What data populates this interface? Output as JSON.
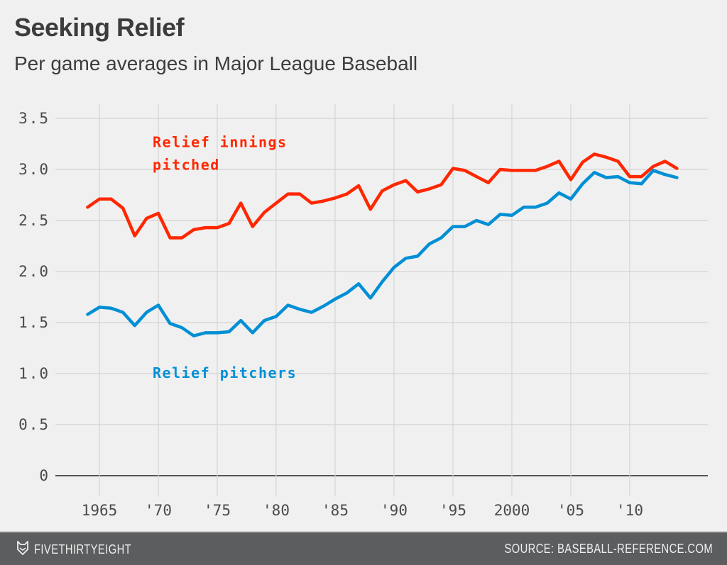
{
  "header": {
    "title": "Seeking Relief",
    "subtitle": "Per game averages in Major League Baseball"
  },
  "footer": {
    "brand": "FIVETHIRTYEIGHT",
    "brand_icon": "fox-logo-icon",
    "source": "SOURCE: BASEBALL-REFERENCE.COM"
  },
  "colors": {
    "background": "#f0f0f0",
    "innings": "#ff2700",
    "pitchers": "#008fd5",
    "grid": "#d4d4d4",
    "axis": "#555555",
    "footer": "#5b5d5e"
  },
  "chart_data": {
    "type": "line",
    "title": "Seeking Relief",
    "subtitle": "Per game averages in Major League Baseball",
    "xlabel": "",
    "ylabel": "",
    "x": [
      1964,
      1965,
      1966,
      1967,
      1968,
      1969,
      1970,
      1971,
      1972,
      1973,
      1974,
      1975,
      1976,
      1977,
      1978,
      1979,
      1980,
      1981,
      1982,
      1983,
      1984,
      1985,
      1986,
      1987,
      1988,
      1989,
      1990,
      1991,
      1992,
      1993,
      1994,
      1995,
      1996,
      1997,
      1998,
      1999,
      2000,
      2001,
      2002,
      2003,
      2004,
      2005,
      2006,
      2007,
      2008,
      2009,
      2010,
      2011,
      2012,
      2013,
      2014
    ],
    "xlim": [
      1963,
      2016
    ],
    "ylim": [
      0,
      3.5
    ],
    "grid": true,
    "legend": "inline labels",
    "xticks": [
      1965,
      1970,
      1975,
      1980,
      1985,
      1990,
      1995,
      2000,
      2005,
      2010
    ],
    "xtick_labels": [
      "1965",
      "'70",
      "'75",
      "'80",
      "'85",
      "'90",
      "'95",
      "2000",
      "'05",
      "'10"
    ],
    "yticks": [
      0,
      0.5,
      1.0,
      1.5,
      2.0,
      2.5,
      3.0,
      3.5
    ],
    "ytick_labels": [
      "0",
      "0.5",
      "1.0",
      "1.5",
      "2.0",
      "2.5",
      "3.0",
      "3.5"
    ],
    "series": [
      {
        "name": "Relief innings pitched",
        "label_lines": [
          "Relief innings",
          "pitched"
        ],
        "label_anchor": [
          1970,
          3.22
        ],
        "color": "#ff2700",
        "values": [
          2.63,
          2.71,
          2.71,
          2.62,
          2.35,
          2.52,
          2.57,
          2.33,
          2.33,
          2.41,
          2.43,
          2.43,
          2.47,
          2.67,
          2.44,
          2.58,
          2.67,
          2.76,
          2.76,
          2.67,
          2.69,
          2.72,
          2.76,
          2.84,
          2.61,
          2.79,
          2.85,
          2.89,
          2.78,
          2.81,
          2.85,
          3.01,
          2.99,
          2.93,
          2.87,
          3.0,
          2.99,
          2.99,
          2.99,
          3.03,
          3.08,
          2.9,
          3.07,
          3.15,
          3.12,
          3.08,
          2.93,
          2.93,
          3.03,
          3.08,
          3.01
        ]
      },
      {
        "name": "Relief pitchers",
        "label_lines": [
          "Relief pitchers"
        ],
        "label_anchor": [
          1970,
          0.96
        ],
        "color": "#008fd5",
        "values": [
          1.58,
          1.65,
          1.64,
          1.6,
          1.47,
          1.6,
          1.67,
          1.49,
          1.45,
          1.37,
          1.4,
          1.4,
          1.41,
          1.52,
          1.4,
          1.52,
          1.56,
          1.67,
          1.63,
          1.6,
          1.66,
          1.73,
          1.79,
          1.88,
          1.74,
          1.9,
          2.04,
          2.13,
          2.15,
          2.27,
          2.33,
          2.44,
          2.44,
          2.5,
          2.46,
          2.56,
          2.55,
          2.63,
          2.63,
          2.67,
          2.77,
          2.71,
          2.86,
          2.97,
          2.92,
          2.93,
          2.87,
          2.86,
          2.99,
          2.95,
          2.92
        ]
      }
    ]
  }
}
